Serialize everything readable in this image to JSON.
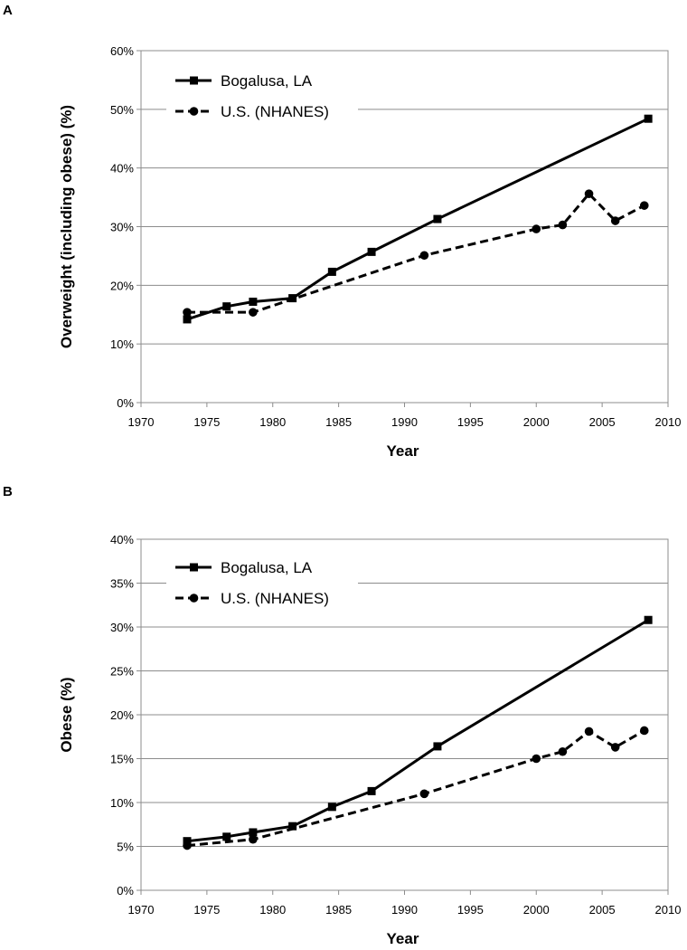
{
  "chart_data": [
    {
      "panel_label": "A",
      "type": "line",
      "title": "",
      "xlabel": "Year",
      "ylabel": "Overweight (including obese) (%)",
      "xlim": [
        1970,
        2010
      ],
      "ylim": [
        0,
        60
      ],
      "xticks": [
        1970,
        1975,
        1980,
        1985,
        1990,
        1995,
        2000,
        2005,
        2010
      ],
      "yticks": [
        0,
        10,
        20,
        30,
        40,
        50,
        60
      ],
      "ytick_labels": [
        "0%",
        "10%",
        "20%",
        "30%",
        "40%",
        "50%",
        "60%"
      ],
      "grid": "horizontal",
      "legend_position": "top-left",
      "series": [
        {
          "name": "Bogalusa, LA",
          "style": "solid",
          "marker": "square",
          "x": [
            1973.5,
            1976.5,
            1978.5,
            1981.5,
            1984.5,
            1987.5,
            1992.5,
            2008.5
          ],
          "y": [
            14.2,
            16.4,
            17.2,
            17.8,
            22.3,
            25.7,
            31.3,
            48.4
          ]
        },
        {
          "name": "U.S. (NHANES)",
          "style": "dashed",
          "marker": "circle",
          "x": [
            1973.5,
            1978.5,
            1991.5,
            2000,
            2002,
            2004,
            2006,
            2008.2
          ],
          "y": [
            15.4,
            15.4,
            25.1,
            29.6,
            30.3,
            35.6,
            31.0,
            33.6
          ]
        }
      ]
    },
    {
      "panel_label": "B",
      "type": "line",
      "title": "",
      "xlabel": "Year",
      "ylabel": "Obese (%)",
      "xlim": [
        1970,
        2010
      ],
      "ylim": [
        0,
        40
      ],
      "xticks": [
        1970,
        1975,
        1980,
        1985,
        1990,
        1995,
        2000,
        2005,
        2010
      ],
      "yticks": [
        0,
        5,
        10,
        15,
        20,
        25,
        30,
        35,
        40
      ],
      "ytick_labels": [
        "0%",
        "5%",
        "10%",
        "15%",
        "20%",
        "25%",
        "30%",
        "35%",
        "40%"
      ],
      "grid": "horizontal",
      "legend_position": "top-left",
      "series": [
        {
          "name": "Bogalusa, LA",
          "style": "solid",
          "marker": "square",
          "x": [
            1973.5,
            1976.5,
            1978.5,
            1981.5,
            1984.5,
            1987.5,
            1992.5,
            2008.5
          ],
          "y": [
            5.6,
            6.1,
            6.6,
            7.3,
            9.5,
            11.3,
            16.4,
            30.8
          ]
        },
        {
          "name": "U.S. (NHANES)",
          "style": "dashed",
          "marker": "circle",
          "x": [
            1973.5,
            1978.5,
            1991.5,
            2000,
            2002,
            2004,
            2006,
            2008.2
          ],
          "y": [
            5.1,
            5.8,
            11.0,
            15.0,
            15.8,
            18.1,
            16.3,
            18.2
          ]
        }
      ]
    }
  ]
}
